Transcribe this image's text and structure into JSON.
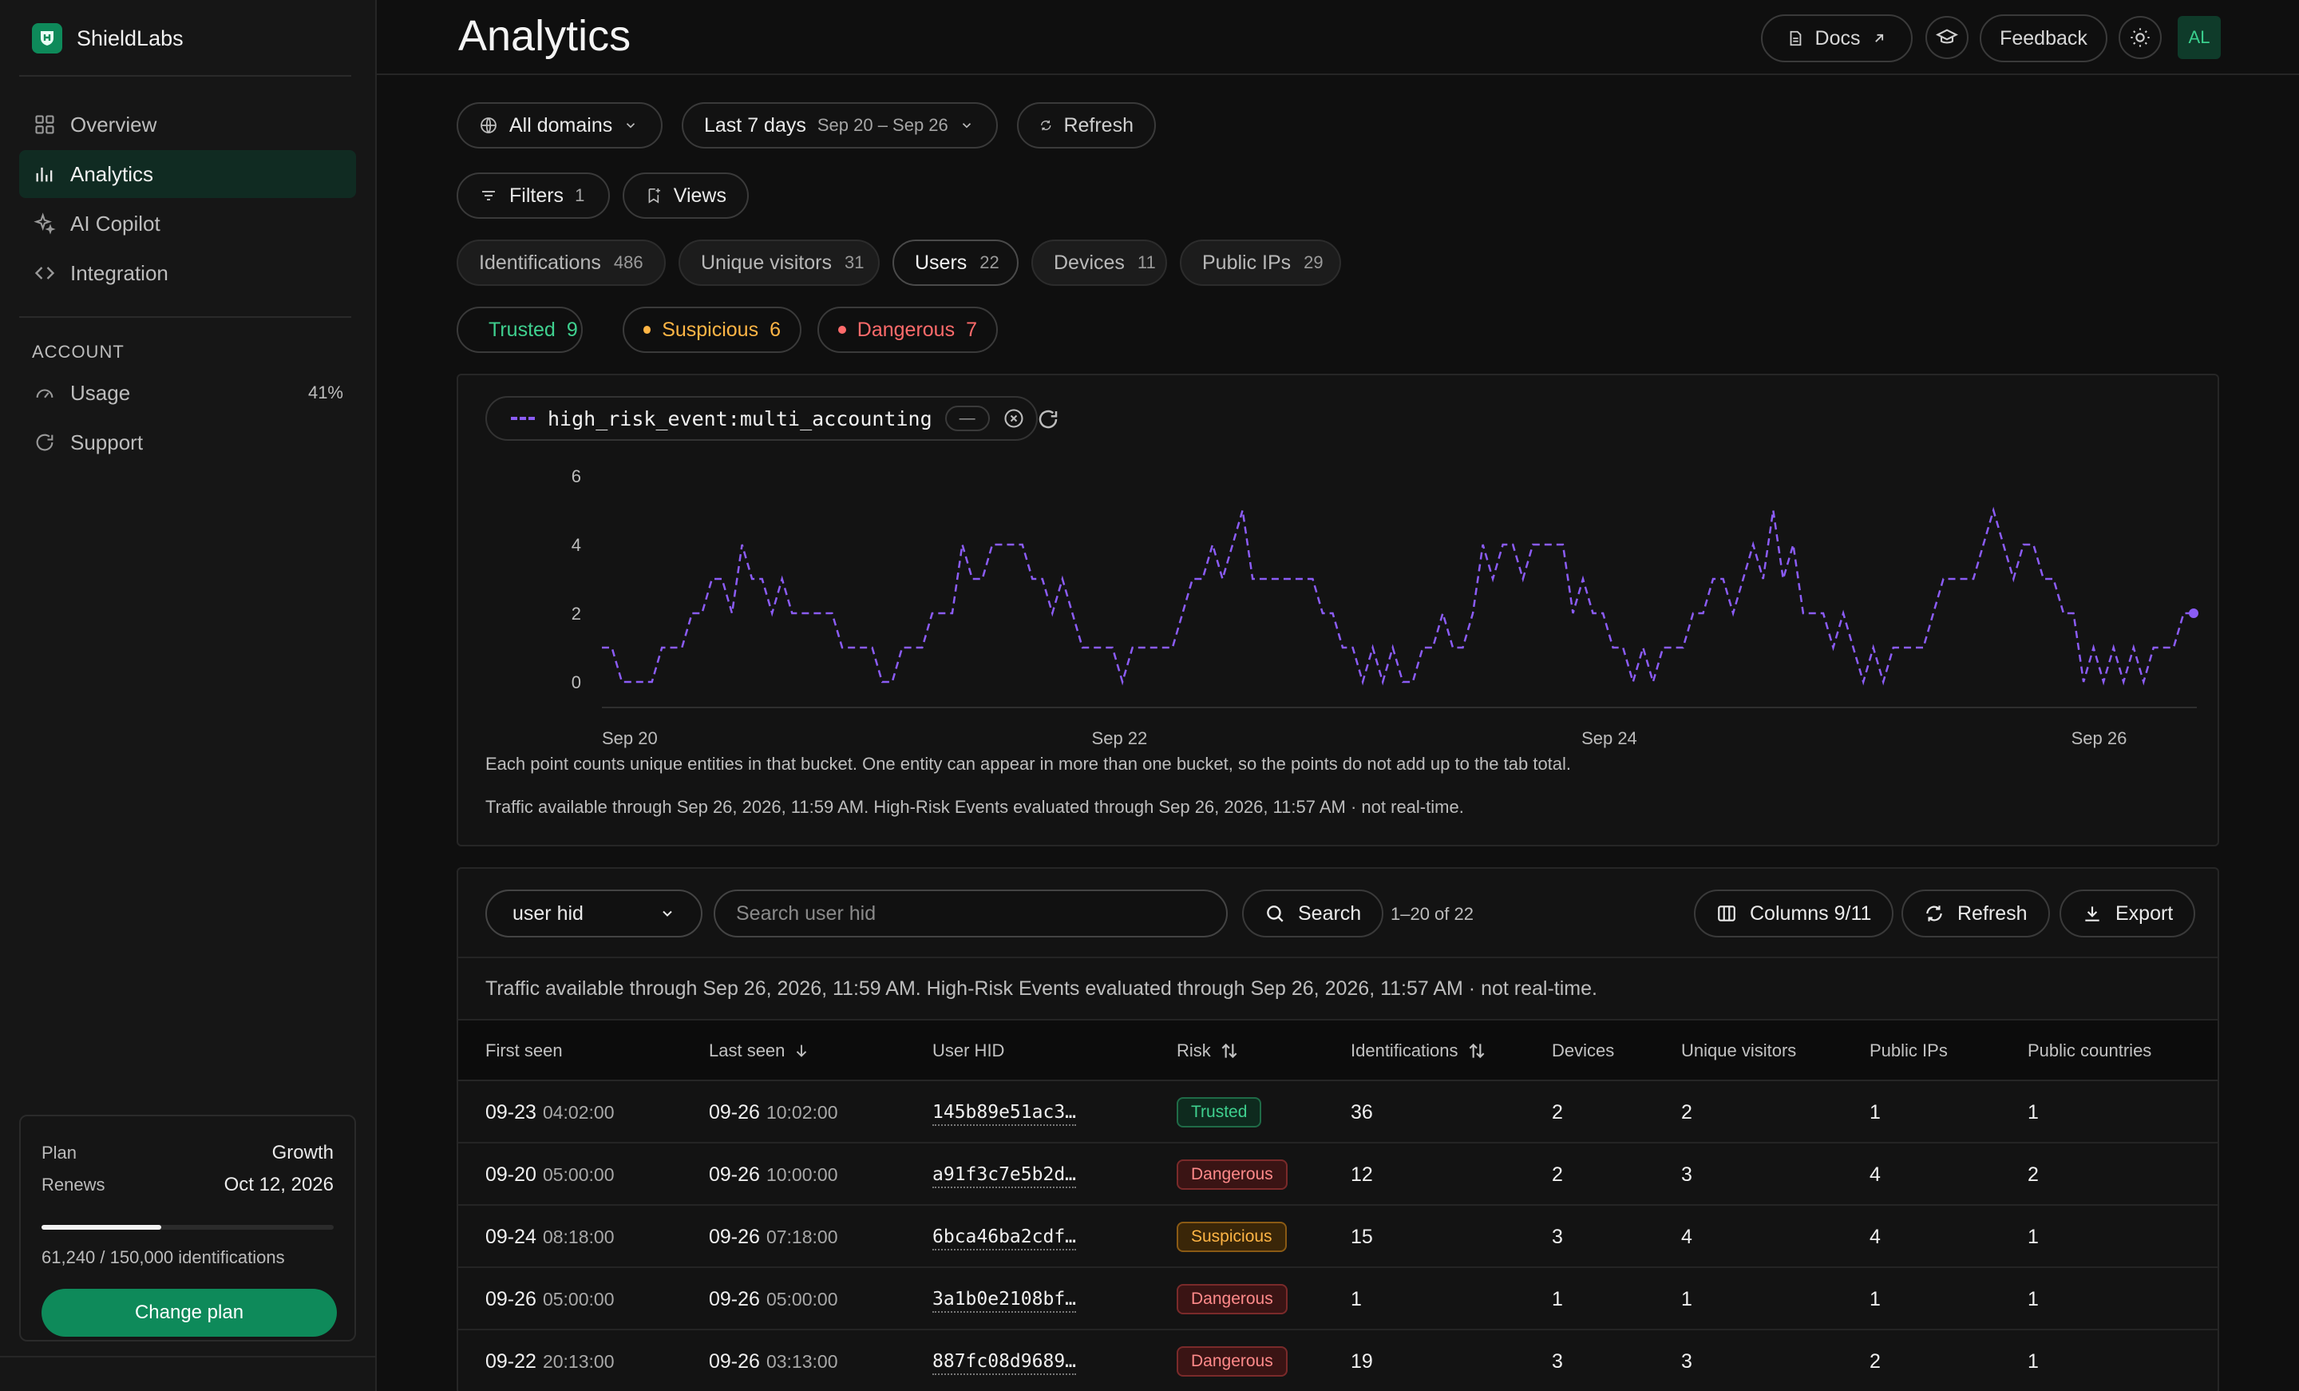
{
  "app": {
    "name": "ShieldLabs"
  },
  "sidebar": {
    "nav": [
      {
        "label": "Overview",
        "icon": "grid-icon"
      },
      {
        "label": "Analytics",
        "icon": "bar-chart-icon",
        "active": true
      },
      {
        "label": "AI Copilot",
        "icon": "sparkle-icon"
      },
      {
        "label": "Integration",
        "icon": "code-icon"
      }
    ],
    "account_heading": "ACCOUNT",
    "account": [
      {
        "label": "Usage",
        "icon": "gauge-icon",
        "value": "41%"
      },
      {
        "label": "Support",
        "icon": "support-icon"
      }
    ],
    "plan": {
      "plan_label": "Plan",
      "plan_value": "Growth",
      "renews_label": "Renews",
      "renews_value": "Oct 12, 2026",
      "usage_fraction": 0.41,
      "usage_text": "61,240 / 150,000 identifications",
      "button": "Change plan"
    }
  },
  "header": {
    "title": "Analytics",
    "docs": "Docs",
    "feedback": "Feedback",
    "avatar": "AL"
  },
  "filters": {
    "domains": "All domains",
    "range_label": "Last 7 days",
    "range_dates": "Sep 20 – Sep 26",
    "refresh": "Refresh",
    "filters_label": "Filters",
    "filters_count": "1",
    "views": "Views"
  },
  "tabs": [
    {
      "label": "Identifications",
      "count": "486"
    },
    {
      "label": "Unique visitors",
      "count": "31"
    },
    {
      "label": "Users",
      "count": "22",
      "active": true
    },
    {
      "label": "Devices",
      "count": "11"
    },
    {
      "label": "Public IPs",
      "count": "29"
    }
  ],
  "risk_filters": [
    {
      "label": "Trusted",
      "count": "9",
      "color": "#3fd08f"
    },
    {
      "label": "Suspicious",
      "count": "6",
      "color": "#ffb545"
    },
    {
      "label": "Dangerous",
      "count": "7",
      "color": "#ff6b6b"
    }
  ],
  "chart": {
    "series_chip": "high_risk_event:multi_accounting",
    "mini": "—",
    "note1": "Each point counts unique entities in that bucket. One entity can appear in more than one bucket, so the points do not add up to the tab total.",
    "note2": "Traffic available through Sep 26, 2026, 11:59 AM. High-Risk Events evaluated through Sep 26, 2026, 11:57 AM · not real-time."
  },
  "chart_data": {
    "type": "line",
    "series": [
      {
        "name": "high_risk_event:multi_accounting",
        "color": "#8b5cf6",
        "values": [
          1,
          1,
          0,
          0,
          0,
          0,
          1,
          1,
          1,
          2,
          2,
          3,
          3,
          2,
          4,
          3,
          3,
          2,
          3,
          2,
          2,
          2,
          2,
          2,
          1,
          1,
          1,
          1,
          0,
          0,
          1,
          1,
          1,
          2,
          2,
          2,
          4,
          3,
          3,
          4,
          4,
          4,
          4,
          3,
          3,
          2,
          3,
          2,
          1,
          1,
          1,
          1,
          0,
          1,
          1,
          1,
          1,
          1,
          2,
          3,
          3,
          4,
          3,
          4,
          5,
          3,
          3,
          3,
          3,
          3,
          3,
          3,
          2,
          2,
          1,
          1,
          0,
          1,
          0,
          1,
          0,
          0,
          1,
          1,
          2,
          1,
          1,
          2,
          4,
          3,
          4,
          4,
          3,
          4,
          4,
          4,
          4,
          2,
          3,
          2,
          2,
          1,
          1,
          0,
          1,
          0,
          1,
          1,
          1,
          2,
          2,
          3,
          3,
          2,
          3,
          4,
          3,
          5,
          3,
          4,
          2,
          2,
          2,
          1,
          2,
          1,
          0,
          1,
          0,
          1,
          1,
          1,
          1,
          2,
          3,
          3,
          3,
          3,
          4,
          5,
          4,
          3,
          4,
          4,
          3,
          3,
          2,
          2,
          0,
          1,
          0,
          1,
          0,
          1,
          0,
          1,
          1,
          1,
          2,
          2
        ]
      }
    ],
    "x_ticks": [
      "Sep 20",
      "Sep 22",
      "Sep 24",
      "Sep 26"
    ],
    "y_ticks": [
      "0",
      "2",
      "4",
      "6"
    ],
    "ylim": [
      0,
      6
    ],
    "grid": false,
    "legend": "top-left"
  },
  "table": {
    "search_field": "user hid",
    "search_placeholder": "Search user hid",
    "search_button": "Search",
    "range": "1–20 of 22",
    "columns_button": "Columns 9/11",
    "refresh_button": "Refresh",
    "export_button": "Export",
    "traffic_note": "Traffic available through Sep 26, 2026, 11:59 AM. High-Risk Events evaluated through Sep 26, 2026, 11:57 AM · not real-time.",
    "headers": [
      "First seen",
      "Last seen",
      "User HID",
      "Risk",
      "Identifications",
      "Devices",
      "Unique visitors",
      "Public IPs",
      "Public countries"
    ],
    "rows": [
      {
        "first_date": "09-23",
        "first_time": "04:02:00",
        "last_date": "09-26",
        "last_time": "10:02:00",
        "hid": "145b89e51ac3…",
        "risk": "Trusted",
        "ident": "36",
        "devices": "2",
        "visitors": "2",
        "ips": "1",
        "countries": "1"
      },
      {
        "first_date": "09-20",
        "first_time": "05:00:00",
        "last_date": "09-26",
        "last_time": "10:00:00",
        "hid": "a91f3c7e5b2d…",
        "risk": "Dangerous",
        "ident": "12",
        "devices": "2",
        "visitors": "3",
        "ips": "4",
        "countries": "2"
      },
      {
        "first_date": "09-24",
        "first_time": "08:18:00",
        "last_date": "09-26",
        "last_time": "07:18:00",
        "hid": "6bca46ba2cdf…",
        "risk": "Suspicious",
        "ident": "15",
        "devices": "3",
        "visitors": "4",
        "ips": "4",
        "countries": "1"
      },
      {
        "first_date": "09-26",
        "first_time": "05:00:00",
        "last_date": "09-26",
        "last_time": "05:00:00",
        "hid": "3a1b0e2108bf…",
        "risk": "Dangerous",
        "ident": "1",
        "devices": "1",
        "visitors": "1",
        "ips": "1",
        "countries": "1"
      },
      {
        "first_date": "09-22",
        "first_time": "20:13:00",
        "last_date": "09-26",
        "last_time": "03:13:00",
        "hid": "887fc08d9689…",
        "risk": "Dangerous",
        "ident": "19",
        "devices": "3",
        "visitors": "3",
        "ips": "2",
        "countries": "1"
      }
    ]
  }
}
